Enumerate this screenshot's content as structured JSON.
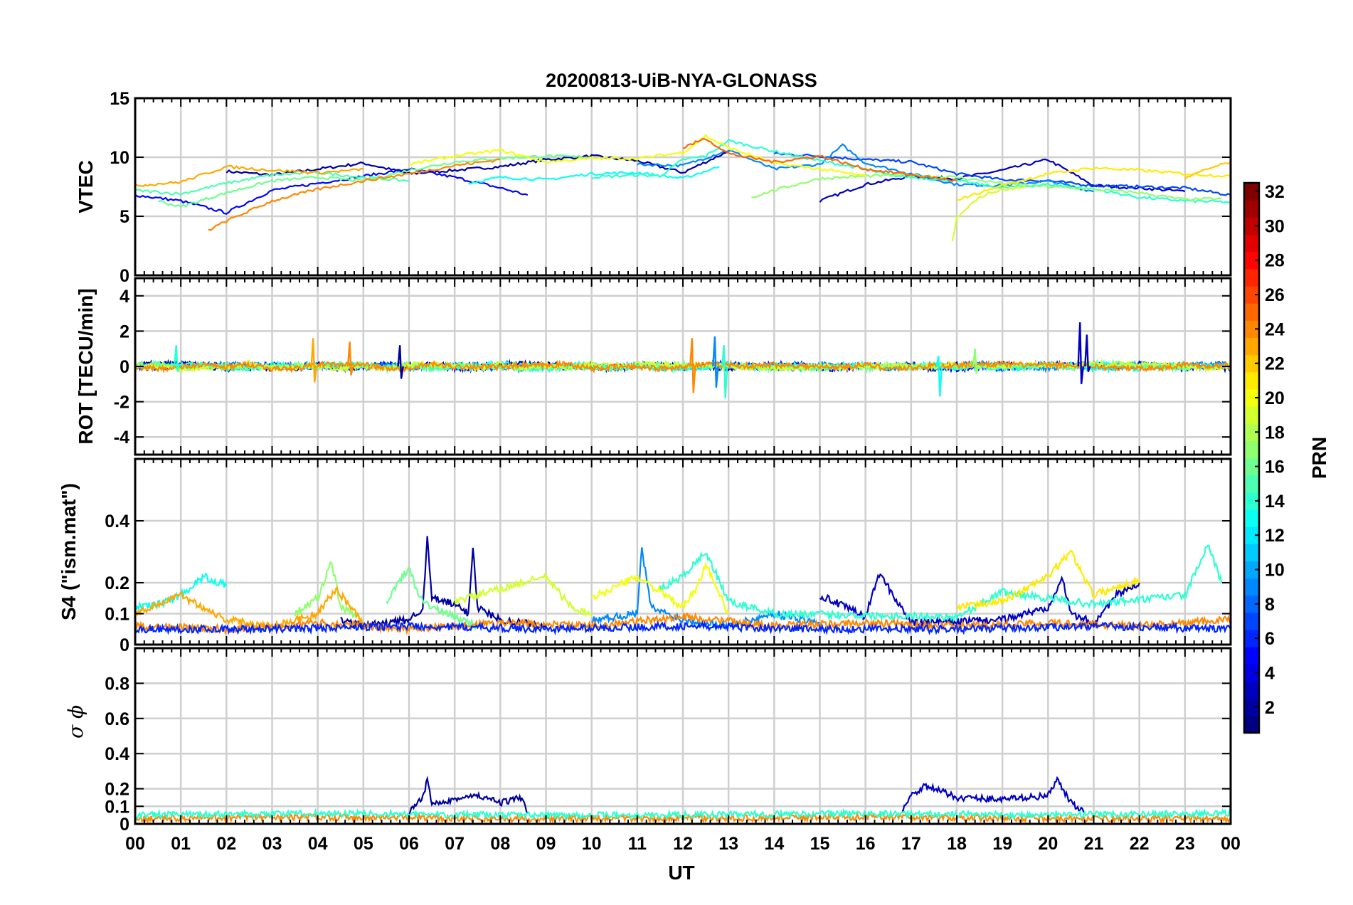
{
  "title": "20200813-UiB-NYA-GLONASS",
  "xlabel": "UT",
  "x_ticks": [
    "00",
    "01",
    "02",
    "03",
    "04",
    "05",
    "06",
    "07",
    "08",
    "09",
    "10",
    "11",
    "12",
    "13",
    "14",
    "15",
    "16",
    "17",
    "18",
    "19",
    "20",
    "21",
    "22",
    "23",
    "00"
  ],
  "colorbar": {
    "label": "PRN",
    "min": 1,
    "max": 32,
    "ticks": [
      "2",
      "4",
      "6",
      "8",
      "10",
      "12",
      "14",
      "16",
      "18",
      "20",
      "22",
      "24",
      "26",
      "28",
      "30",
      "32"
    ],
    "colormap": "jet"
  },
  "chart_data": [
    {
      "type": "line",
      "panel": "VTEC",
      "ylabel": "VTEC",
      "ylim": [
        0,
        15
      ],
      "yticks": [
        "0",
        "5",
        "10",
        "15"
      ],
      "grid": true,
      "series": [
        {
          "prn": 2,
          "x": [
            2,
            3,
            4,
            5,
            6,
            7,
            8,
            9,
            10,
            11,
            12,
            13
          ],
          "values": [
            8.8,
            8.5,
            9.0,
            9.5,
            8.6,
            8.9,
            9.2,
            9.8,
            10.1,
            9.7,
            8.7,
            10.5
          ]
        },
        {
          "prn": 3,
          "x": [
            15,
            16,
            17,
            18,
            19,
            20,
            21,
            22,
            23
          ],
          "values": [
            6.3,
            7.7,
            8.4,
            8.2,
            8.9,
            9.8,
            7.6,
            7.4,
            7.1
          ]
        },
        {
          "prn": 5,
          "x": [
            0,
            1,
            2,
            3,
            4,
            5,
            6,
            7,
            8,
            8.6
          ],
          "values": [
            6.8,
            6.3,
            5.3,
            7.2,
            7.8,
            8.4,
            9.0,
            8.3,
            7.4,
            6.8
          ]
        },
        {
          "prn": 7,
          "x": [
            14,
            15,
            16,
            17,
            18,
            19,
            20,
            21,
            22,
            23,
            24
          ],
          "values": [
            10.3,
            10.1,
            9.8,
            9.6,
            8.6,
            8.1,
            8.0,
            7.6,
            7.5,
            7.4,
            6.8
          ]
        },
        {
          "prn": 9,
          "x": [
            11,
            12,
            13,
            14,
            15,
            15.5,
            16,
            17,
            18,
            19,
            20,
            21
          ],
          "values": [
            9.4,
            9.3,
            10.6,
            9.0,
            9.4,
            11.0,
            9.5,
            8.6,
            7.7,
            7.6,
            8.0,
            7.1
          ]
        },
        {
          "prn": 13,
          "x": [
            7.3,
            8,
            9,
            10,
            11,
            12,
            12.8
          ],
          "values": [
            7.8,
            8.3,
            8.1,
            8.6,
            8.7,
            8.2,
            9.2
          ]
        },
        {
          "prn": 14,
          "x": [
            10,
            11,
            11.5,
            12,
            12.5,
            13,
            14,
            15,
            16,
            16.5,
            17,
            18,
            19,
            20,
            21,
            22,
            23,
            24
          ],
          "values": [
            8.3,
            8.5,
            8.4,
            9.8,
            10.1,
            11.4,
            10.5,
            9.7,
            9.0,
            8.5,
            8.3,
            8.0,
            7.4,
            7.7,
            7.3,
            6.6,
            6.3,
            6.2
          ]
        },
        {
          "prn": 15,
          "x": [
            0,
            1,
            2,
            3,
            4,
            5,
            6
          ],
          "values": [
            7.2,
            6.9,
            7.8,
            8.5,
            8.7,
            8.3,
            8.0
          ]
        },
        {
          "prn": 16,
          "x": [
            0.5,
            1,
            2,
            3,
            4,
            5,
            6,
            7,
            8,
            9,
            10
          ],
          "values": [
            6.3,
            5.8,
            7.0,
            8.0,
            8.3,
            8.0,
            8.9,
            9.6,
            9.9,
            10.1,
            10.0
          ]
        },
        {
          "prn": 17,
          "x": [
            13.5,
            14,
            15,
            16,
            17,
            18,
            19,
            20,
            21,
            22,
            23,
            23.8
          ],
          "values": [
            6.6,
            7.2,
            8.2,
            8.4,
            8.5,
            8.3,
            7.8,
            7.5,
            7.3,
            7.0,
            6.4,
            6.5
          ]
        },
        {
          "prn": 19,
          "x": [
            17.9,
            18,
            18.3,
            18.6,
            19,
            19.5
          ],
          "values": [
            2.8,
            4.8,
            6.0,
            6.8,
            7.3,
            7.5
          ]
        },
        {
          "prn": 20,
          "x": [
            6,
            7,
            8,
            9,
            10,
            11,
            12,
            12.5,
            13,
            14,
            15,
            16
          ],
          "values": [
            9.4,
            10.1,
            10.6,
            9.6,
            9.9,
            9.9,
            10.4,
            11.8,
            10.8,
            9.5,
            9.0,
            8.4
          ]
        },
        {
          "prn": 21,
          "x": [
            18,
            19,
            20,
            21,
            22,
            23,
            24
          ],
          "values": [
            6.4,
            7.6,
            8.6,
            9.1,
            8.9,
            8.6,
            8.4
          ]
        },
        {
          "prn": 23,
          "x": [
            0,
            1,
            2,
            3,
            4,
            4.8,
            5
          ],
          "values": [
            7.6,
            7.9,
            9.2,
            8.9,
            8.7,
            8.9,
            9.0
          ]
        },
        {
          "prn": 24,
          "x": [
            1.6,
            2,
            3,
            4,
            5,
            6,
            7,
            8
          ],
          "values": [
            3.8,
            4.6,
            6.3,
            7.3,
            8.0,
            8.6,
            9.3,
            9.8
          ]
        },
        {
          "prn": 25,
          "x": [
            12,
            12.5,
            13,
            14,
            15,
            16,
            17,
            18
          ],
          "values": [
            10.8,
            11.6,
            10.3,
            9.6,
            10.1,
            9.0,
            8.5,
            8.0
          ]
        },
        {
          "prn": 22,
          "x": [
            23,
            23.5,
            24
          ],
          "values": [
            8.2,
            9.0,
            9.6
          ]
        }
      ]
    },
    {
      "type": "line",
      "panel": "ROT",
      "ylabel": "ROT [TECU/min]",
      "ylim": [
        -5,
        5
      ],
      "yticks": [
        "-4",
        "-2",
        "0",
        "2",
        "4"
      ],
      "grid": true,
      "spikes": [
        {
          "prn": 23,
          "x": 3.9,
          "values": [
            1.6,
            -0.9
          ]
        },
        {
          "prn": 24,
          "x": 4.7,
          "values": [
            1.4,
            -0.5
          ]
        },
        {
          "prn": 14,
          "x": 0.9,
          "values": [
            1.2,
            -0.3
          ]
        },
        {
          "prn": 2,
          "x": 5.8,
          "values": [
            1.2,
            -0.7
          ]
        },
        {
          "prn": 24,
          "x": 12.2,
          "values": [
            1.6,
            -1.5
          ]
        },
        {
          "prn": 9,
          "x": 12.7,
          "values": [
            1.7,
            -1.2
          ]
        },
        {
          "prn": 14,
          "x": 12.9,
          "values": [
            1.2,
            -1.8
          ]
        },
        {
          "prn": 13,
          "x": 17.6,
          "values": [
            0.6,
            -1.7
          ]
        },
        {
          "prn": 17,
          "x": 18.4,
          "values": [
            1.0,
            -0.4
          ]
        },
        {
          "prn": 3,
          "x": 20.7,
          "values": [
            2.5,
            -1.0
          ]
        },
        {
          "prn": 3,
          "x": 20.85,
          "values": [
            1.8,
            -0.3
          ]
        }
      ]
    },
    {
      "type": "line",
      "panel": "S4",
      "ylabel": "S4 (\"ism.mat\")",
      "ylim": [
        0,
        0.6
      ],
      "yticks": [
        "0",
        "0.1",
        "0.2",
        "0.4"
      ],
      "grid": true,
      "series": [
        {
          "prn": 2,
          "x": [
            4.5,
            5,
            6,
            6.3,
            6.4,
            6.5,
            7,
            7.3,
            7.4,
            7.5,
            8,
            9
          ],
          "values": [
            0.08,
            0.06,
            0.08,
            0.12,
            0.34,
            0.15,
            0.13,
            0.1,
            0.32,
            0.12,
            0.08,
            0.06
          ]
        },
        {
          "prn": 3,
          "x": [
            15,
            16,
            16.3,
            17,
            19,
            20,
            20.3,
            20.5,
            21,
            21.5,
            22
          ],
          "values": [
            0.16,
            0.09,
            0.23,
            0.07,
            0.08,
            0.12,
            0.22,
            0.1,
            0.07,
            0.16,
            0.2
          ]
        },
        {
          "prn": 9,
          "x": [
            10,
            11,
            11.1,
            11.3,
            12,
            13,
            14,
            15
          ],
          "values": [
            0.08,
            0.1,
            0.31,
            0.12,
            0.08,
            0.06,
            0.1,
            0.07
          ]
        },
        {
          "prn": 13,
          "x": [
            0,
            0.5,
            1,
            1.5,
            2
          ],
          "values": [
            0.12,
            0.13,
            0.16,
            0.22,
            0.19
          ]
        },
        {
          "prn": 14,
          "x": [
            11.5,
            12,
            12.5,
            13,
            14,
            18,
            19,
            20,
            21,
            23,
            23.5,
            23.8
          ],
          "values": [
            0.18,
            0.22,
            0.3,
            0.14,
            0.1,
            0.09,
            0.17,
            0.15,
            0.13,
            0.16,
            0.32,
            0.2
          ]
        },
        {
          "prn": 16,
          "x": [
            5.5,
            6,
            6.2,
            6.5,
            7,
            7.5
          ],
          "values": [
            0.14,
            0.25,
            0.16,
            0.12,
            0.09,
            0.06
          ]
        },
        {
          "prn": 17,
          "x": [
            3.5,
            4,
            4.3,
            4.5,
            5
          ],
          "values": [
            0.1,
            0.15,
            0.27,
            0.12,
            0.08
          ]
        },
        {
          "prn": 19,
          "x": [
            7,
            8,
            9,
            9.5,
            10
          ],
          "values": [
            0.14,
            0.18,
            0.22,
            0.13,
            0.09
          ]
        },
        {
          "prn": 20,
          "x": [
            10,
            11,
            12,
            12.3,
            12.5,
            13
          ],
          "values": [
            0.15,
            0.22,
            0.12,
            0.18,
            0.26,
            0.1
          ]
        },
        {
          "prn": 21,
          "x": [
            18,
            19,
            20,
            20.5,
            21,
            22
          ],
          "values": [
            0.12,
            0.14,
            0.22,
            0.3,
            0.16,
            0.21
          ]
        },
        {
          "prn": 23,
          "x": [
            0,
            1,
            2,
            3,
            4,
            4.4,
            5
          ],
          "values": [
            0.1,
            0.16,
            0.08,
            0.06,
            0.1,
            0.18,
            0.07
          ]
        },
        {
          "prn": 24,
          "x": [
            0,
            2,
            4,
            6,
            8,
            10,
            12,
            14,
            16,
            18,
            20,
            22,
            24
          ],
          "values": [
            0.06,
            0.05,
            0.07,
            0.05,
            0.07,
            0.06,
            0.09,
            0.06,
            0.07,
            0.06,
            0.07,
            0.06,
            0.08
          ]
        },
        {
          "prn": 6,
          "x": [
            0,
            3,
            6,
            9,
            12,
            15,
            18,
            21,
            24
          ],
          "values": [
            0.05,
            0.05,
            0.06,
            0.05,
            0.06,
            0.05,
            0.05,
            0.06,
            0.05
          ]
        }
      ]
    },
    {
      "type": "line",
      "panel": "sigma_phi",
      "ylabel": "σ ϕ",
      "ylim": [
        0,
        1
      ],
      "yticks": [
        "0",
        "0.1",
        "0.2",
        "0.4",
        "0.6",
        "0.8"
      ],
      "grid": true,
      "series": [
        {
          "prn": 2,
          "x": [
            6,
            6.3,
            6.4,
            6.5,
            7,
            7.5,
            8,
            8.5,
            8.6
          ],
          "values": [
            0.06,
            0.15,
            0.25,
            0.12,
            0.14,
            0.16,
            0.12,
            0.15,
            0.06
          ]
        },
        {
          "prn": 3,
          "x": [
            16.8,
            17,
            17.3,
            18,
            19,
            20,
            20.2,
            20.5,
            20.8
          ],
          "values": [
            0.08,
            0.16,
            0.22,
            0.15,
            0.14,
            0.16,
            0.25,
            0.12,
            0.06
          ]
        },
        {
          "prn": 24,
          "x": [
            0,
            4,
            8,
            12,
            16,
            20,
            24
          ],
          "values": [
            0.03,
            0.04,
            0.03,
            0.03,
            0.04,
            0.03,
            0.03
          ]
        },
        {
          "prn": 14,
          "x": [
            0,
            4,
            8,
            12,
            16,
            20,
            24
          ],
          "values": [
            0.05,
            0.06,
            0.05,
            0.05,
            0.06,
            0.05,
            0.06
          ]
        }
      ]
    }
  ]
}
